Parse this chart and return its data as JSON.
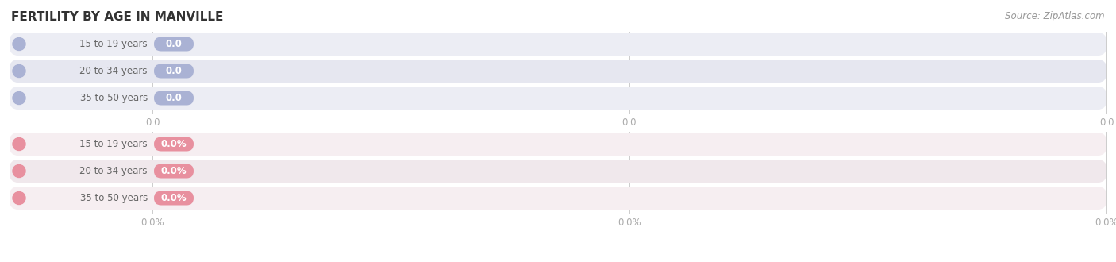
{
  "title": "FERTILITY BY AGE IN MANVILLE",
  "source_text": "Source: ZipAtlas.com",
  "top_categories": [
    "15 to 19 years",
    "20 to 34 years",
    "35 to 50 years"
  ],
  "bottom_categories": [
    "15 to 19 years",
    "20 to 34 years",
    "35 to 50 years"
  ],
  "top_tick_labels": [
    "0.0",
    "0.0",
    "0.0"
  ],
  "bottom_tick_labels": [
    "0.0%",
    "0.0%",
    "0.0%"
  ],
  "top_pill_label": "0.0",
  "bottom_pill_label": "0.0%",
  "top_circle_color": "#aab2d4",
  "bottom_circle_color": "#e8909f",
  "top_pill_color": "#aab2d4",
  "bottom_pill_color": "#e8909f",
  "top_row_colors": [
    "#ecedf4",
    "#e6e7f0",
    "#ecedf4"
  ],
  "bottom_row_colors": [
    "#f6eef1",
    "#f0e8ec",
    "#f6eef1"
  ],
  "tick_color": "#aaaaaa",
  "label_color": "#666666",
  "title_color": "#333333",
  "source_color": "#999999",
  "bg_color": "#ffffff",
  "pill_text_color": "#ffffff",
  "title_fontsize": 11,
  "label_fontsize": 8.5,
  "tick_fontsize": 8.5,
  "source_fontsize": 8.5
}
